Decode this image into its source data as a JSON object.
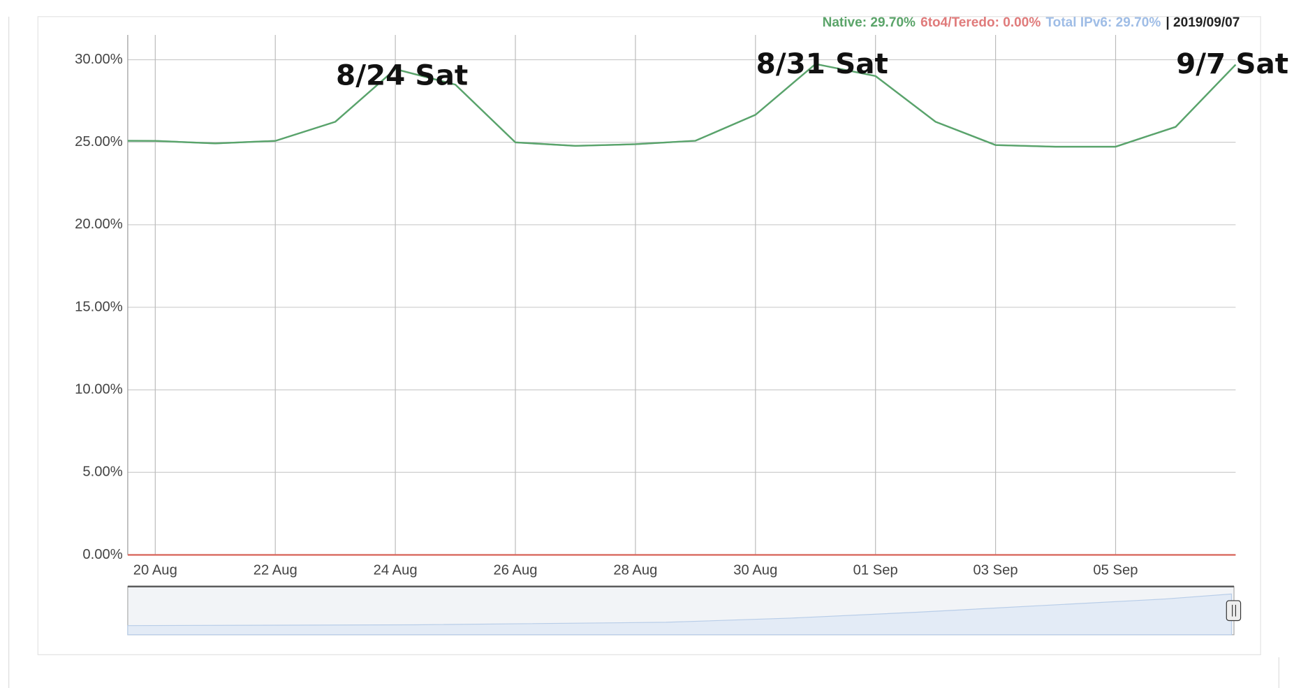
{
  "chart_data": {
    "type": "line",
    "legend": [
      {
        "text": "Native: 29.70%",
        "color": "#5aa469"
      },
      {
        "text": "6to4/Teredo: 0.00%",
        "color": "#e07b7b"
      },
      {
        "text": "Total IPv6: 29.70%",
        "color": "#9fbde6"
      },
      {
        "text": "| 2019/09/07",
        "color": "#222222"
      }
    ],
    "x": [
      "2019-08-19",
      "2019-08-20",
      "2019-08-21",
      "2019-08-22",
      "2019-08-23",
      "2019-08-24",
      "2019-08-25",
      "2019-08-26",
      "2019-08-27",
      "2019-08-28",
      "2019-08-29",
      "2019-08-30",
      "2019-08-31",
      "2019-09-01",
      "2019-09-02",
      "2019-09-03",
      "2019-09-04",
      "2019-09-05",
      "2019-09-06",
      "2019-09-07"
    ],
    "series": [
      {
        "color": "#9fbde6",
        "values": [
          25.1,
          25.08,
          24.93,
          25.08,
          26.24,
          29.43,
          28.49,
          24.99,
          24.78,
          24.88,
          25.09,
          26.66,
          29.74,
          29.01,
          26.24,
          24.83,
          24.73,
          24.73,
          25.93,
          29.7
        ]
      },
      {
        "color": "#d9695f",
        "values": [
          0,
          0,
          0,
          0,
          0,
          0,
          0,
          0,
          0,
          0,
          0,
          0,
          0,
          0,
          0,
          0,
          0,
          0,
          0,
          0
        ]
      },
      {
        "color": "#5aa469",
        "values": [
          25.1,
          25.08,
          24.93,
          25.08,
          26.24,
          29.43,
          28.49,
          24.99,
          24.78,
          24.88,
          25.09,
          26.66,
          29.74,
          29.01,
          26.24,
          24.83,
          24.73,
          24.73,
          25.93,
          29.7
        ]
      }
    ],
    "xlim": [
      "2019-08-19T13:00",
      "2019-09-07T00:00"
    ],
    "xticks": [
      {
        "value": "2019-08-20",
        "label": "20 Aug"
      },
      {
        "value": "2019-08-22",
        "label": "22 Aug"
      },
      {
        "value": "2019-08-24",
        "label": "24 Aug"
      },
      {
        "value": "2019-08-26",
        "label": "26 Aug"
      },
      {
        "value": "2019-08-28",
        "label": "28 Aug"
      },
      {
        "value": "2019-08-30",
        "label": "30 Aug"
      },
      {
        "value": "2019-09-01",
        "label": "01 Sep"
      },
      {
        "value": "2019-09-03",
        "label": "03 Sep"
      },
      {
        "value": "2019-09-05",
        "label": "05 Sep"
      }
    ],
    "ylim": [
      0,
      31.5
    ],
    "yticks": [
      {
        "value": 0,
        "label": "0.00%"
      },
      {
        "value": 5,
        "label": "5.00%"
      },
      {
        "value": 10,
        "label": "10.00%"
      },
      {
        "value": 15,
        "label": "15.00%"
      },
      {
        "value": 20,
        "label": "20.00%"
      },
      {
        "value": 25,
        "label": "25.00%"
      },
      {
        "value": 30,
        "label": "30.00%"
      }
    ],
    "grid": true,
    "annotations": [
      {
        "x": "2019-08-24",
        "text": "8/24 Sat"
      },
      {
        "x": "2019-08-31",
        "text": "8/31 Sat"
      },
      {
        "x": "2019-09-07",
        "text": "9/7 Sat"
      }
    ]
  }
}
